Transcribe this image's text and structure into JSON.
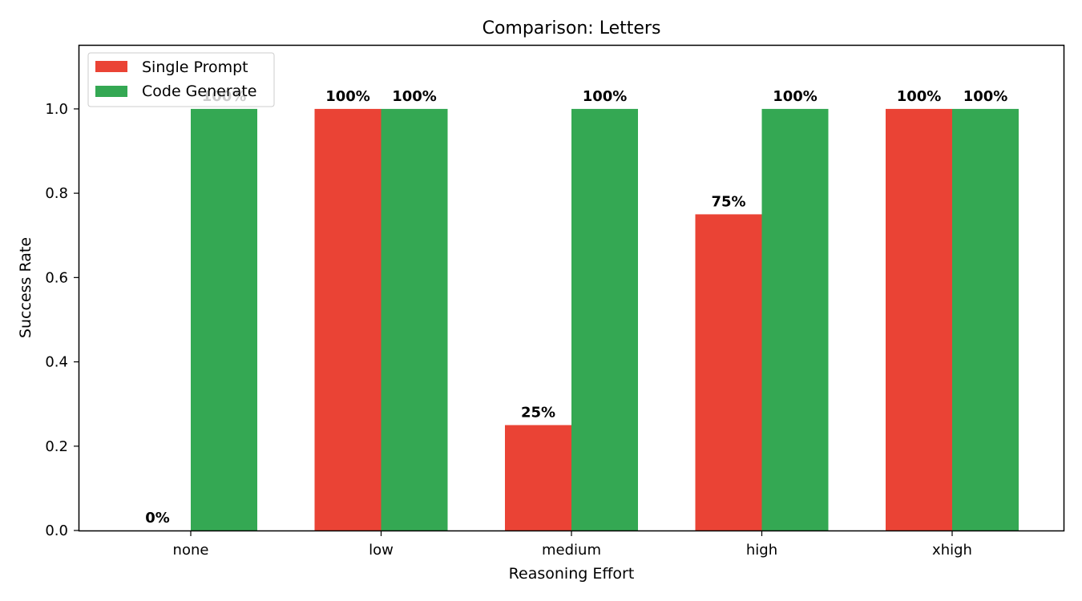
{
  "chart_data": {
    "type": "bar",
    "title": "Comparison: Letters",
    "xlabel": "Reasoning Effort",
    "ylabel": "Success Rate",
    "categories": [
      "none",
      "low",
      "medium",
      "high",
      "xhigh"
    ],
    "series": [
      {
        "name": "Single Prompt",
        "color": "#ea4335",
        "values": [
          0.0,
          1.0,
          0.25,
          0.75,
          1.0
        ],
        "labels": [
          "0%",
          "100%",
          "25%",
          "75%",
          "100%"
        ]
      },
      {
        "name": "Code Generate",
        "color": "#34a853",
        "values": [
          1.0,
          1.0,
          1.0,
          1.0,
          1.0
        ],
        "labels": [
          "100%",
          "100%",
          "100%",
          "100%",
          "100%"
        ]
      }
    ],
    "ylim": [
      0,
      1.15
    ],
    "yticks": [
      "0.0",
      "0.2",
      "0.4",
      "0.6",
      "0.8",
      "1.0"
    ],
    "legend_position": "top-left",
    "grid": false
  }
}
